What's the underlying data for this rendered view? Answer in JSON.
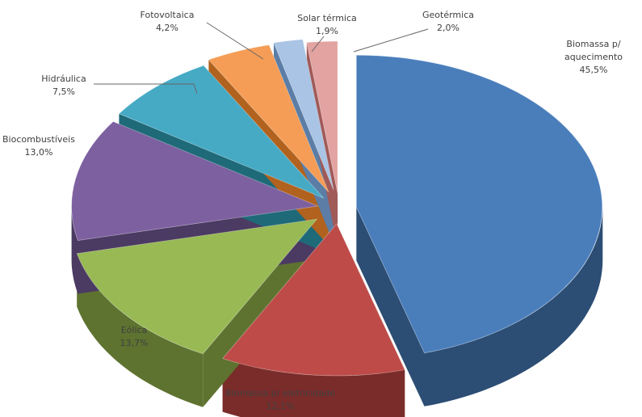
{
  "chart_data": {
    "type": "pie",
    "style": "exploded-3d",
    "title": "",
    "unit": "%",
    "slices": [
      {
        "name": "Biomassa p/ aquecimento",
        "name_lines": [
          "Biomassa p/",
          "aquecimento"
        ],
        "value": 45.5,
        "value_label": "45,5%",
        "color": "#4A7EBB",
        "side_color": "#2C4D74"
      },
      {
        "name": "Biomassa p/ eletricidade",
        "name_lines": [
          "Biomassa p/ eletricidade"
        ],
        "value": 12.1,
        "value_label": "12,1%",
        "color": "#BE4B48",
        "side_color": "#7A2C2A"
      },
      {
        "name": "Eólica",
        "name_lines": [
          "Eólica"
        ],
        "value": 13.7,
        "value_label": "13,7%",
        "color": "#98B954",
        "side_color": "#5E7330"
      },
      {
        "name": "Biocombustíveis",
        "name_lines": [
          "Biocombustíveis"
        ],
        "value": 13.0,
        "value_label": "13,0%",
        "color": "#7D60A0",
        "side_color": "#4B3A62"
      },
      {
        "name": "Hidráulica",
        "name_lines": [
          "Hidráulica"
        ],
        "value": 7.5,
        "value_label": "7,5%",
        "color": "#46AAC5",
        "side_color": "#1F6A78"
      },
      {
        "name": "Fotovoltaica",
        "name_lines": [
          "Fotovoltaica"
        ],
        "value": 4.2,
        "value_label": "4,2%",
        "color": "#F59D56",
        "side_color": "#B0621E"
      },
      {
        "name": "Solar térmica",
        "name_lines": [
          "Solar térmica"
        ],
        "value": 1.9,
        "value_label": "1,9%",
        "color": "#A9C4E4",
        "side_color": "#5B7DA6"
      },
      {
        "name": "Geotérmica",
        "name_lines": [
          "Geotérmica"
        ],
        "value": 2.0,
        "value_label": "2,0%",
        "color": "#E3A3A1",
        "side_color": "#A05A58"
      }
    ]
  }
}
